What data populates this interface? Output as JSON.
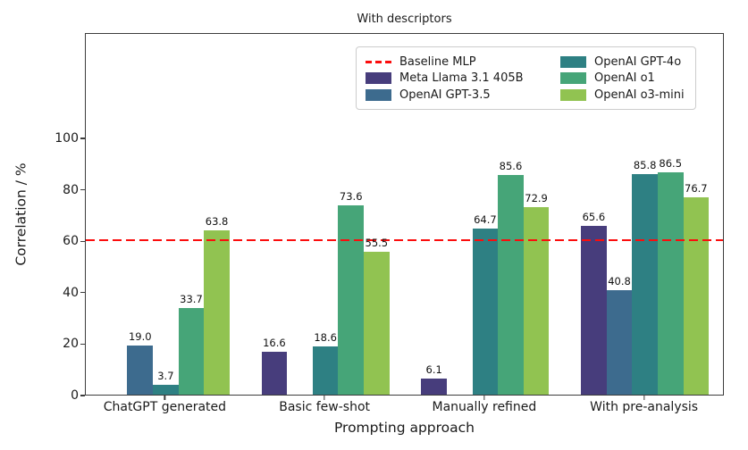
{
  "chart_data": {
    "type": "bar",
    "title": "With descriptors",
    "xlabel": "Prompting approach",
    "ylabel": "Correlation / %",
    "ylim": [
      0,
      141
    ],
    "yticks": [
      0,
      20,
      40,
      60,
      80,
      100
    ],
    "grid": false,
    "legend_position": "upper right, two columns",
    "categories": [
      "ChatGPT generated",
      "Basic few-shot",
      "Manually refined",
      "With pre-analysis"
    ],
    "baseline": {
      "label": "Baseline MLP",
      "value": 60,
      "color": "#fb0d0d",
      "style": "dashed"
    },
    "series": [
      {
        "name": "Meta Llama 3.1 405B",
        "color": "#473d7c",
        "values": [
          null,
          16.6,
          6.1,
          65.6
        ]
      },
      {
        "name": "OpenAI GPT-3.5",
        "color": "#3d6b8e",
        "values": [
          19.0,
          null,
          null,
          40.8
        ]
      },
      {
        "name": "OpenAI GPT-4o",
        "color": "#2e8083",
        "values": [
          3.7,
          18.6,
          64.7,
          85.8
        ]
      },
      {
        "name": "OpenAI o1",
        "color": "#46a578",
        "values": [
          33.7,
          73.6,
          85.6,
          86.5
        ]
      },
      {
        "name": "OpenAI o3-mini",
        "color": "#91c351",
        "values": [
          63.8,
          55.5,
          72.9,
          76.7
        ]
      }
    ],
    "legend": {
      "columns": [
        [
          {
            "swatch": "dash",
            "color": "#fb0d0d",
            "label": "Baseline MLP"
          },
          {
            "swatch": "rect",
            "color": "#473d7c",
            "label": "Meta Llama 3.1 405B"
          },
          {
            "swatch": "rect",
            "color": "#3d6b8e",
            "label": "OpenAI GPT-3.5"
          }
        ],
        [
          {
            "swatch": "rect",
            "color": "#2e8083",
            "label": "OpenAI GPT-4o"
          },
          {
            "swatch": "rect",
            "color": "#46a578",
            "label": "OpenAI o1"
          },
          {
            "swatch": "rect",
            "color": "#91c351",
            "label": "OpenAI o3-mini"
          }
        ]
      ]
    }
  }
}
